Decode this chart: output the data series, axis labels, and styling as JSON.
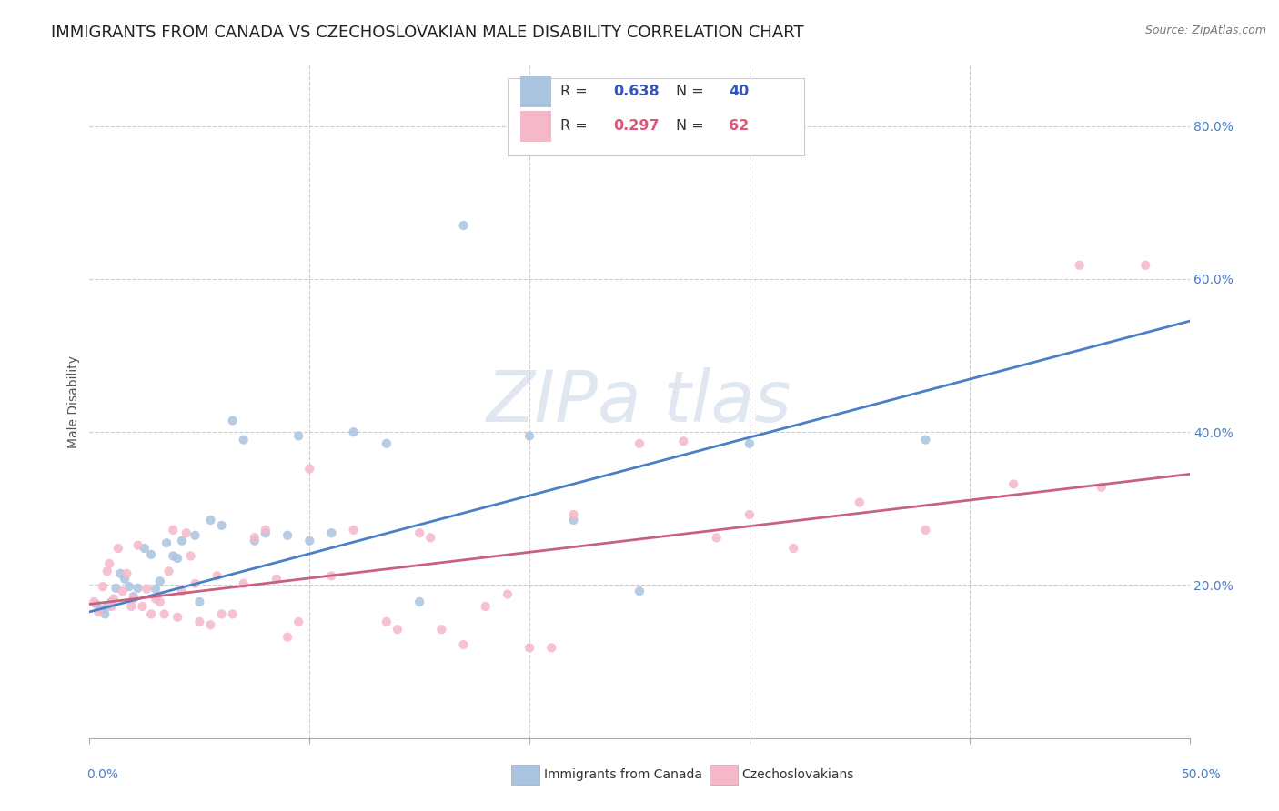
{
  "title": "IMMIGRANTS FROM CANADA VS CZECHOSLOVAKIAN MALE DISABILITY CORRELATION CHART",
  "source": "Source: ZipAtlas.com",
  "ylabel": "Male Disability",
  "ytick_values": [
    0.2,
    0.4,
    0.6,
    0.8
  ],
  "ytick_labels": [
    "20.0%",
    "40.0%",
    "60.0%",
    "80.0%"
  ],
  "xlim": [
    0.0,
    0.5
  ],
  "ylim": [
    0.0,
    0.88
  ],
  "background_color": "#ffffff",
  "blue_scatter_x": [
    0.003,
    0.005,
    0.007,
    0.008,
    0.01,
    0.012,
    0.014,
    0.016,
    0.018,
    0.02,
    0.022,
    0.025,
    0.028,
    0.03,
    0.032,
    0.035,
    0.038,
    0.04,
    0.042,
    0.048,
    0.05,
    0.055,
    0.06,
    0.065,
    0.07,
    0.075,
    0.08,
    0.09,
    0.095,
    0.1,
    0.11,
    0.12,
    0.135,
    0.15,
    0.17,
    0.2,
    0.22,
    0.25,
    0.3,
    0.38
  ],
  "blue_scatter_y": [
    0.175,
    0.168,
    0.162,
    0.172,
    0.178,
    0.196,
    0.215,
    0.208,
    0.198,
    0.185,
    0.196,
    0.248,
    0.24,
    0.195,
    0.205,
    0.255,
    0.238,
    0.235,
    0.258,
    0.265,
    0.178,
    0.285,
    0.278,
    0.415,
    0.39,
    0.258,
    0.268,
    0.265,
    0.395,
    0.258,
    0.268,
    0.4,
    0.385,
    0.178,
    0.67,
    0.395,
    0.285,
    0.192,
    0.385,
    0.39
  ],
  "pink_scatter_x": [
    0.002,
    0.004,
    0.006,
    0.008,
    0.009,
    0.01,
    0.011,
    0.013,
    0.015,
    0.017,
    0.019,
    0.02,
    0.022,
    0.024,
    0.026,
    0.028,
    0.03,
    0.032,
    0.034,
    0.036,
    0.038,
    0.04,
    0.042,
    0.044,
    0.046,
    0.048,
    0.05,
    0.055,
    0.058,
    0.06,
    0.065,
    0.07,
    0.075,
    0.08,
    0.085,
    0.09,
    0.095,
    0.1,
    0.11,
    0.12,
    0.135,
    0.14,
    0.15,
    0.155,
    0.16,
    0.17,
    0.18,
    0.19,
    0.2,
    0.21,
    0.22,
    0.25,
    0.27,
    0.285,
    0.3,
    0.32,
    0.35,
    0.38,
    0.42,
    0.45,
    0.46,
    0.48
  ],
  "pink_scatter_y": [
    0.178,
    0.165,
    0.198,
    0.218,
    0.228,
    0.172,
    0.182,
    0.248,
    0.192,
    0.215,
    0.172,
    0.182,
    0.252,
    0.172,
    0.195,
    0.162,
    0.182,
    0.178,
    0.162,
    0.218,
    0.272,
    0.158,
    0.192,
    0.268,
    0.238,
    0.202,
    0.152,
    0.148,
    0.212,
    0.162,
    0.162,
    0.202,
    0.262,
    0.272,
    0.208,
    0.132,
    0.152,
    0.352,
    0.212,
    0.272,
    0.152,
    0.142,
    0.268,
    0.262,
    0.142,
    0.122,
    0.172,
    0.188,
    0.118,
    0.118,
    0.292,
    0.385,
    0.388,
    0.262,
    0.292,
    0.248,
    0.308,
    0.272,
    0.332,
    0.618,
    0.328,
    0.618
  ],
  "blue_line_x": [
    0.0,
    0.5
  ],
  "blue_line_y": [
    0.165,
    0.545
  ],
  "pink_line_x": [
    0.0,
    0.5
  ],
  "pink_line_y": [
    0.175,
    0.345
  ],
  "blue_scatter_color": "#aac4e0",
  "pink_scatter_color": "#f5b8c8",
  "blue_line_color": "#4a7ec7",
  "pink_line_color": "#c96080",
  "scatter_size": 55,
  "scatter_alpha": 0.85,
  "grid_color": "#cccccc",
  "grid_linestyle": "--",
  "title_fontsize": 13,
  "axis_label_fontsize": 10,
  "tick_fontsize": 10,
  "legend_R_N_color": "#3355bb",
  "legend_pink_R_N_color": "#dd5577",
  "watermark_color": "#ccd8e8",
  "watermark_alpha": 0.6,
  "xtick_positions": [
    0.0,
    0.1,
    0.2,
    0.3,
    0.4,
    0.5
  ],
  "bottom_legend_blue_label": "Immigrants from Canada",
  "bottom_legend_pink_label": "Czechoslovakians",
  "legend_R1": "0.638",
  "legend_N1": "40",
  "legend_R2": "0.297",
  "legend_N2": "62"
}
